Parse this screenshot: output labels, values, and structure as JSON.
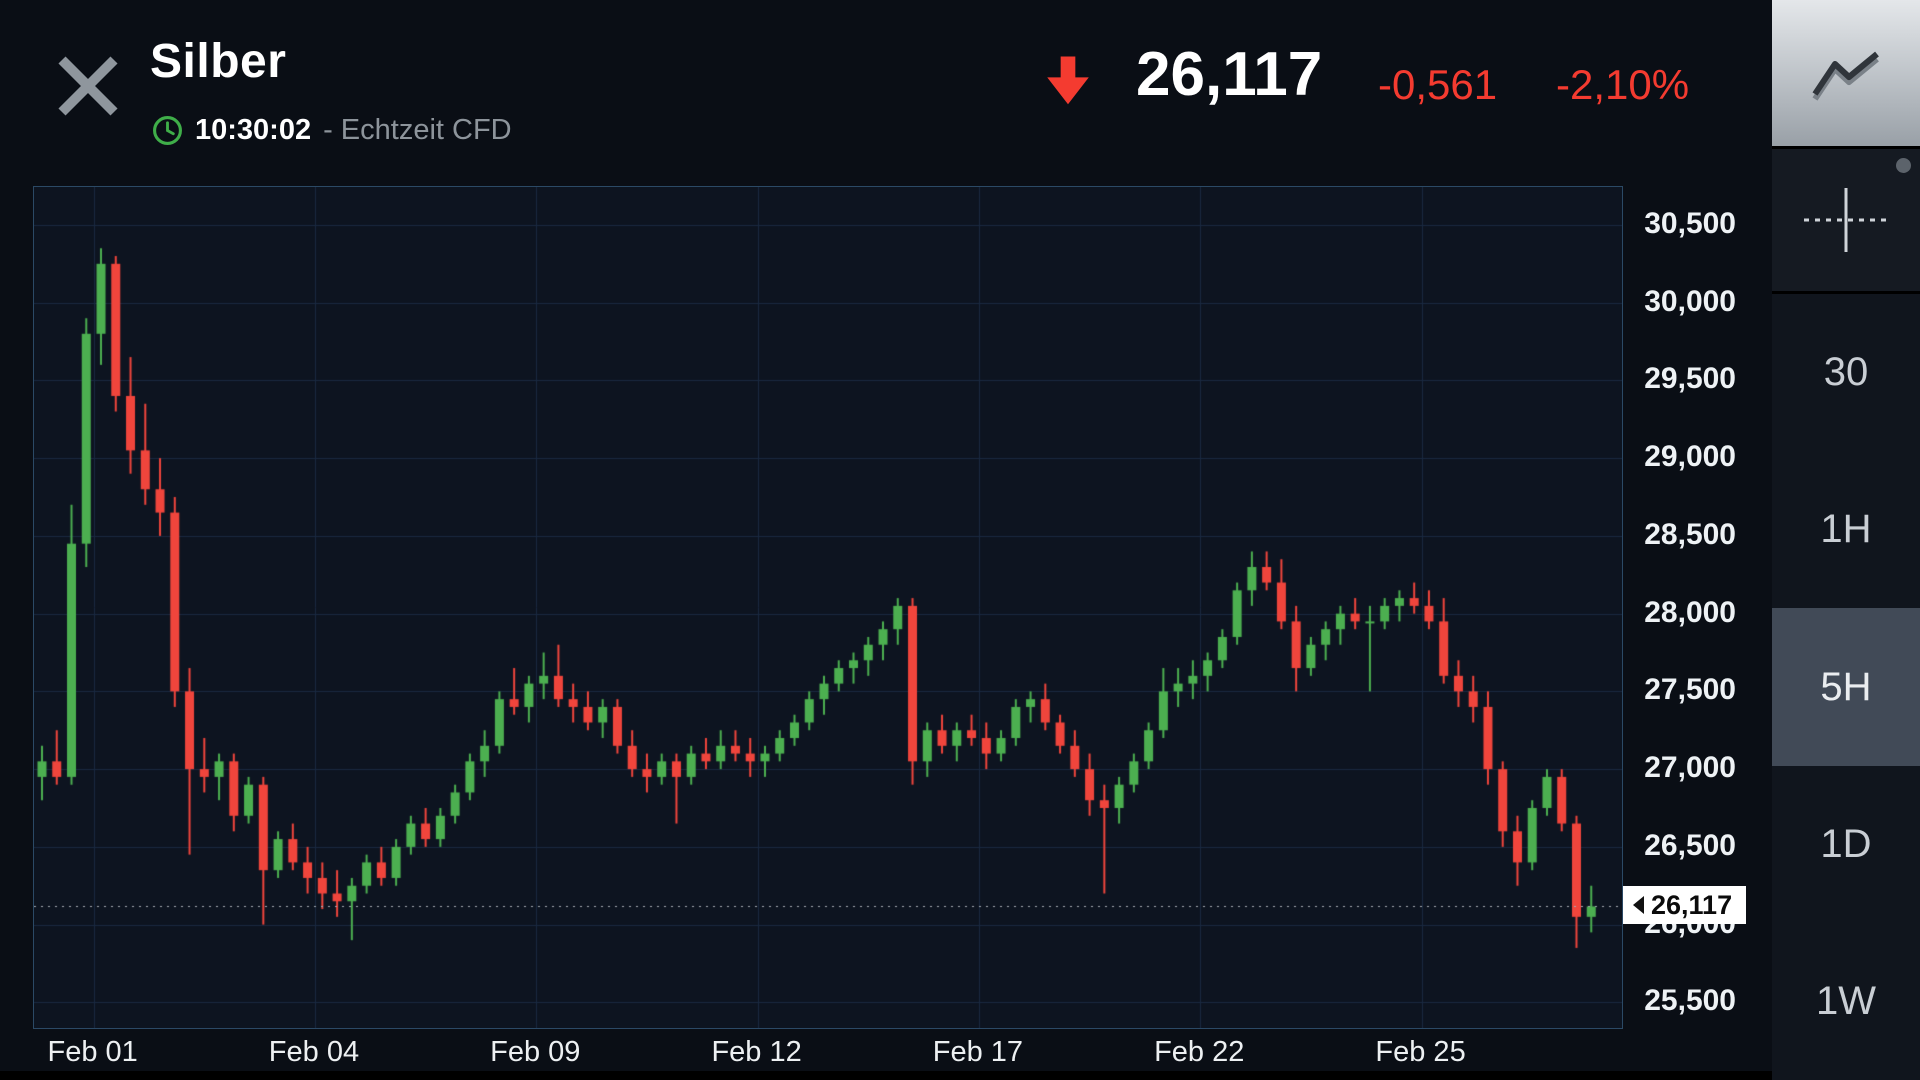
{
  "header": {
    "title": "Silber",
    "time": "10:30:02",
    "feed": "- Echtzeit CFD",
    "quote": {
      "price": "26,117",
      "change": "-0,561",
      "change_percent": "-2,10%",
      "direction": "down"
    }
  },
  "sidebar": {
    "chart_type_button": "line-chart-style",
    "crosshair_button": "crosshair",
    "timeframes": [
      {
        "label": "30",
        "selected": false
      },
      {
        "label": "1H",
        "selected": false
      },
      {
        "label": "5H",
        "selected": true
      },
      {
        "label": "1D",
        "selected": false
      },
      {
        "label": "1W",
        "selected": false
      }
    ]
  },
  "chart_data": {
    "type": "candlestick",
    "title": "Silber",
    "timeframe": "5H",
    "y_axis": {
      "range": [
        25335,
        30744
      ],
      "grid": true,
      "ticks": [
        {
          "value": 30500,
          "label": "30,500"
        },
        {
          "value": 30000,
          "label": "30,000"
        },
        {
          "value": 29500,
          "label": "29,500"
        },
        {
          "value": 29000,
          "label": "29,000"
        },
        {
          "value": 28500,
          "label": "28,500"
        },
        {
          "value": 28000,
          "label": "28,000"
        },
        {
          "value": 27500,
          "label": "27,500"
        },
        {
          "value": 27000,
          "label": "27,000"
        },
        {
          "value": 26500,
          "label": "26,500"
        },
        {
          "value": 26000,
          "label": "26,000"
        },
        {
          "value": 25500,
          "label": "25,500"
        }
      ]
    },
    "x_axis": {
      "labels": [
        {
          "index": 4,
          "label": "Feb 01"
        },
        {
          "index": 19,
          "label": "Feb 04"
        },
        {
          "index": 34,
          "label": "Feb 09"
        },
        {
          "index": 49,
          "label": "Feb 12"
        },
        {
          "index": 64,
          "label": "Feb 17"
        },
        {
          "index": 79,
          "label": "Feb 22"
        },
        {
          "index": 94,
          "label": "Feb 25"
        }
      ]
    },
    "current_price": {
      "value": 26117,
      "label": "26,117"
    },
    "colors": {
      "up": "#4caf50",
      "down": "#f0453c",
      "grid": "#1a2940",
      "price_line": "#a8aeb4",
      "accent_red": "#f43b30",
      "accent_green": "#3fae49"
    },
    "ohlc": [
      [
        26950,
        27150,
        26800,
        27050
      ],
      [
        27050,
        27250,
        26900,
        26950
      ],
      [
        26950,
        28700,
        26900,
        28450
      ],
      [
        28450,
        29900,
        28300,
        29800
      ],
      [
        29800,
        30350,
        29600,
        30250
      ],
      [
        30250,
        30300,
        29300,
        29400
      ],
      [
        29400,
        29650,
        28900,
        29050
      ],
      [
        29050,
        29350,
        28700,
        28800
      ],
      [
        28800,
        29000,
        28500,
        28650
      ],
      [
        28650,
        28750,
        27400,
        27500
      ],
      [
        27500,
        27650,
        26450,
        27000
      ],
      [
        27000,
        27200,
        26850,
        26950
      ],
      [
        26950,
        27100,
        26800,
        27050
      ],
      [
        27050,
        27100,
        26600,
        26700
      ],
      [
        26700,
        26950,
        26650,
        26900
      ],
      [
        26900,
        26950,
        26000,
        26350
      ],
      [
        26350,
        26600,
        26300,
        26550
      ],
      [
        26550,
        26650,
        26350,
        26400
      ],
      [
        26400,
        26500,
        26200,
        26300
      ],
      [
        26300,
        26400,
        26100,
        26200
      ],
      [
        26200,
        26350,
        26050,
        26150
      ],
      [
        26150,
        26300,
        25900,
        26250
      ],
      [
        26250,
        26450,
        26200,
        26400
      ],
      [
        26400,
        26500,
        26250,
        26300
      ],
      [
        26300,
        26550,
        26250,
        26500
      ],
      [
        26500,
        26700,
        26450,
        26650
      ],
      [
        26650,
        26750,
        26500,
        26550
      ],
      [
        26550,
        26750,
        26500,
        26700
      ],
      [
        26700,
        26900,
        26650,
        26850
      ],
      [
        26850,
        27100,
        26800,
        27050
      ],
      [
        27050,
        27250,
        26950,
        27150
      ],
      [
        27150,
        27500,
        27100,
        27450
      ],
      [
        27450,
        27650,
        27350,
        27400
      ],
      [
        27400,
        27600,
        27300,
        27550
      ],
      [
        27550,
        27750,
        27450,
        27600
      ],
      [
        27600,
        27800,
        27400,
        27450
      ],
      [
        27450,
        27550,
        27300,
        27400
      ],
      [
        27400,
        27500,
        27250,
        27300
      ],
      [
        27300,
        27450,
        27200,
        27400
      ],
      [
        27400,
        27450,
        27100,
        27150
      ],
      [
        27150,
        27250,
        26950,
        27000
      ],
      [
        27000,
        27100,
        26850,
        26950
      ],
      [
        26950,
        27100,
        26900,
        27050
      ],
      [
        27050,
        27100,
        26650,
        26950
      ],
      [
        26950,
        27150,
        26900,
        27100
      ],
      [
        27100,
        27200,
        27000,
        27050
      ],
      [
        27050,
        27250,
        27000,
        27150
      ],
      [
        27150,
        27250,
        27050,
        27100
      ],
      [
        27100,
        27200,
        26950,
        27050
      ],
      [
        27050,
        27150,
        26950,
        27100
      ],
      [
        27100,
        27250,
        27050,
        27200
      ],
      [
        27200,
        27350,
        27150,
        27300
      ],
      [
        27300,
        27500,
        27250,
        27450
      ],
      [
        27450,
        27600,
        27350,
        27550
      ],
      [
        27550,
        27700,
        27500,
        27650
      ],
      [
        27650,
        27750,
        27550,
        27700
      ],
      [
        27700,
        27850,
        27600,
        27800
      ],
      [
        27800,
        27950,
        27700,
        27900
      ],
      [
        27900,
        28100,
        27800,
        28050
      ],
      [
        28050,
        28100,
        26900,
        27050
      ],
      [
        27050,
        27300,
        26950,
        27250
      ],
      [
        27250,
        27350,
        27100,
        27150
      ],
      [
        27150,
        27300,
        27050,
        27250
      ],
      [
        27250,
        27350,
        27150,
        27200
      ],
      [
        27200,
        27300,
        27000,
        27100
      ],
      [
        27100,
        27250,
        27050,
        27200
      ],
      [
        27200,
        27450,
        27150,
        27400
      ],
      [
        27400,
        27500,
        27300,
        27450
      ],
      [
        27450,
        27550,
        27250,
        27300
      ],
      [
        27300,
        27350,
        27100,
        27150
      ],
      [
        27150,
        27250,
        26950,
        27000
      ],
      [
        27000,
        27100,
        26700,
        26800
      ],
      [
        26800,
        26900,
        26200,
        26750
      ],
      [
        26750,
        26950,
        26650,
        26900
      ],
      [
        26900,
        27100,
        26850,
        27050
      ],
      [
        27050,
        27300,
        27000,
        27250
      ],
      [
        27250,
        27650,
        27200,
        27500
      ],
      [
        27500,
        27650,
        27400,
        27550
      ],
      [
        27550,
        27700,
        27450,
        27600
      ],
      [
        27600,
        27750,
        27500,
        27700
      ],
      [
        27700,
        27900,
        27650,
        27850
      ],
      [
        27850,
        28200,
        27800,
        28150
      ],
      [
        28150,
        28400,
        28050,
        28300
      ],
      [
        28300,
        28400,
        28150,
        28200
      ],
      [
        28200,
        28350,
        27900,
        27950
      ],
      [
        27950,
        28050,
        27500,
        27650
      ],
      [
        27650,
        27850,
        27600,
        27800
      ],
      [
        27800,
        27950,
        27700,
        27900
      ],
      [
        27900,
        28050,
        27800,
        28000
      ],
      [
        28000,
        28100,
        27900,
        27950
      ],
      [
        27950,
        28050,
        27500,
        27950
      ],
      [
        27950,
        28100,
        27900,
        28050
      ],
      [
        28050,
        28150,
        27950,
        28100
      ],
      [
        28100,
        28200,
        28000,
        28050
      ],
      [
        28050,
        28150,
        27900,
        27950
      ],
      [
        27950,
        28100,
        27550,
        27600
      ],
      [
        27600,
        27700,
        27400,
        27500
      ],
      [
        27500,
        27600,
        27300,
        27400
      ],
      [
        27400,
        27500,
        26900,
        27000
      ],
      [
        27000,
        27050,
        26500,
        26600
      ],
      [
        26600,
        26700,
        26250,
        26400
      ],
      [
        26400,
        26800,
        26350,
        26750
      ],
      [
        26750,
        27000,
        26700,
        26950
      ],
      [
        26950,
        27000,
        26600,
        26650
      ],
      [
        26650,
        26700,
        25850,
        26050
      ],
      [
        26050,
        26250,
        25950,
        26117
      ]
    ]
  }
}
